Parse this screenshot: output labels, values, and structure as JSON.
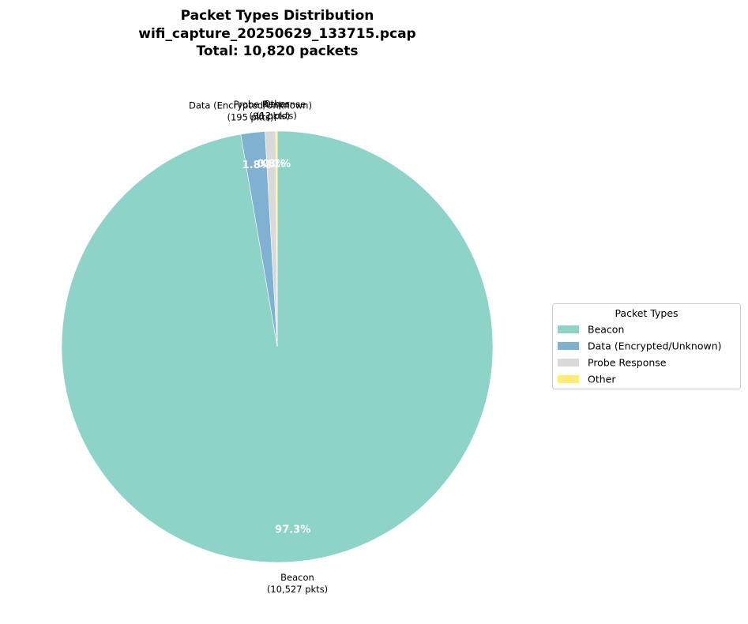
{
  "chart_data": {
    "type": "pie",
    "title_lines": [
      "Packet Types Distribution",
      "wifi_capture_20250629_133715.pcap",
      "Total: 10,820 packets"
    ],
    "total": 10820,
    "start_angle_deg": 90,
    "direction": "clockwise",
    "slices": [
      {
        "label": "Beacon",
        "count": 10527,
        "count_text": "(10,527 pkts)",
        "pct_text": "97.3%",
        "color": "#8dd3c7"
      },
      {
        "label": "Data (Encrypted/Unknown)",
        "count": 195,
        "count_text": "(195 pkts)",
        "pct_text": "1.8%",
        "color": "#80b1d3"
      },
      {
        "label": "Probe Response",
        "count": 86,
        "count_text": "(86 pkts)",
        "pct_text": "0.8%",
        "color": "#d9d9d9"
      },
      {
        "label": "Other",
        "count": 12,
        "count_text": "(12 pkts)",
        "pct_text": "0.1%",
        "color": "#ffed6f"
      }
    ],
    "legend": {
      "title": "Packet Types",
      "placement": "right",
      "entries": [
        "Beacon",
        "Data (Encrypted/Unknown)",
        "Probe Response",
        "Other"
      ]
    }
  }
}
